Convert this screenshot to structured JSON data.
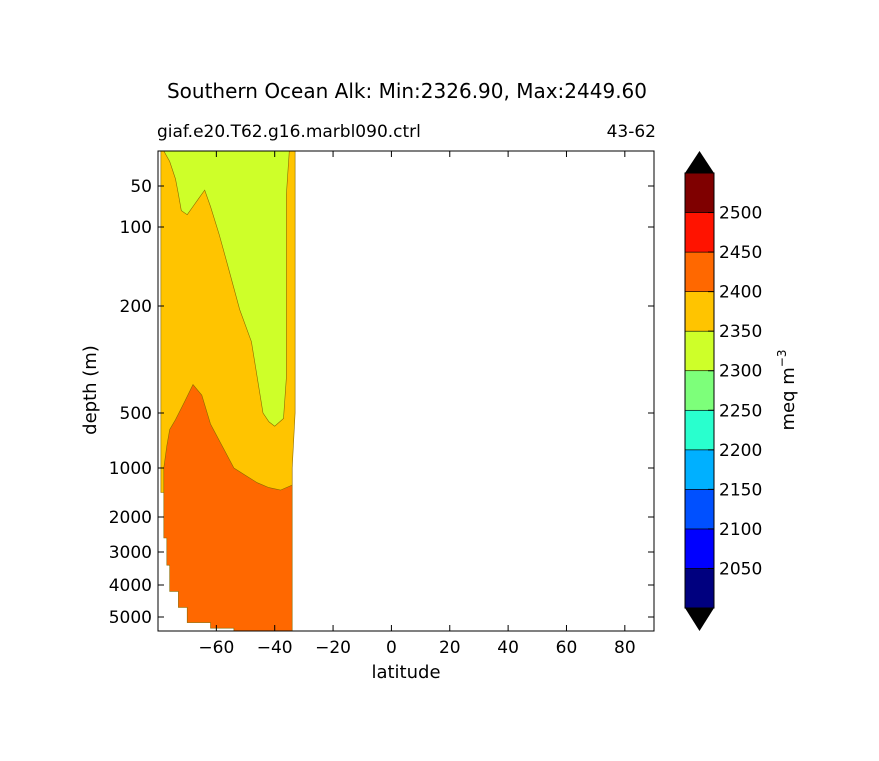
{
  "chart_data": {
    "type": "contour",
    "title": "Southern Ocean Alk: Min:2326.90, Max:2449.60",
    "subtitle_left": "giaf.e20.T62.g16.marbl090.ctrl",
    "subtitle_right": "43-62",
    "xlabel": "latitude",
    "ylabel": "depth (m)",
    "xlim": [
      -80,
      90
    ],
    "ylim": [
      5500,
      0
    ],
    "y_scale": "piecewise depth (shallow expanded)",
    "x_ticks": [
      -60,
      -40,
      -20,
      0,
      20,
      40,
      60,
      80
    ],
    "x_tick_labels": [
      "−60",
      "−40",
      "−20",
      "0",
      "20",
      "40",
      "60",
      "80"
    ],
    "y_ticks": [
      50,
      100,
      200,
      500,
      1000,
      2000,
      3000,
      4000,
      5000
    ],
    "y_tick_labels": [
      "50",
      "100",
      "200",
      "500",
      "1000",
      "2000",
      "3000",
      "4000",
      "5000"
    ],
    "grid": false,
    "colorbar": {
      "label": "meq m",
      "label_superscript": "−3",
      "levels": [
        2000,
        2050,
        2100,
        2150,
        2200,
        2250,
        2300,
        2350,
        2400,
        2450,
        2500,
        2550
      ],
      "tick_labels": [
        "2050",
        "2100",
        "2150",
        "2200",
        "2250",
        "2300",
        "2350",
        "2400",
        "2450",
        "2500"
      ],
      "colors": [
        "#00007f",
        "#0000ff",
        "#0050ff",
        "#00b0ff",
        "#29ffce",
        "#7dff7a",
        "#ceff29",
        "#ffc400",
        "#ff6800",
        "#ff1300",
        "#7f0000"
      ],
      "extend_min_color": "#000000",
      "extend_max_color": "#000000"
    },
    "regions": [
      {
        "level_range": [
          2350,
          2400
        ],
        "color": "#ffc400",
        "boundary": [
          [
            -79,
            0
          ],
          [
            -33,
            0
          ],
          [
            -33,
            500
          ],
          [
            -34,
            1000
          ],
          [
            -34,
            1500
          ],
          [
            -79,
            1500
          ]
        ]
      },
      {
        "level_range": [
          2300,
          2350
        ],
        "color": "#ceff29",
        "boundary": [
          [
            -78,
            0
          ],
          [
            -35,
            0
          ],
          [
            -36,
            60
          ],
          [
            -36,
            200
          ],
          [
            -36,
            400
          ],
          [
            -37,
            550
          ],
          [
            -40,
            620
          ],
          [
            -42,
            580
          ],
          [
            -44,
            500
          ],
          [
            -46,
            400
          ],
          [
            -48,
            300
          ],
          [
            -52,
            210
          ],
          [
            -56,
            150
          ],
          [
            -59,
            110
          ],
          [
            -62,
            75
          ],
          [
            -64,
            55
          ],
          [
            -66,
            65
          ],
          [
            -68,
            75
          ],
          [
            -70,
            85
          ],
          [
            -72,
            80
          ],
          [
            -73,
            60
          ],
          [
            -74,
            40
          ],
          [
            -76,
            15
          ]
        ]
      },
      {
        "level_range": [
          2400,
          2450
        ],
        "color": "#ff6800",
        "boundary": [
          [
            -78,
            1000
          ],
          [
            -77,
            800
          ],
          [
            -76,
            650
          ],
          [
            -74,
            560
          ],
          [
            -71,
            470
          ],
          [
            -68,
            420
          ],
          [
            -65,
            450
          ],
          [
            -62,
            600
          ],
          [
            -58,
            800
          ],
          [
            -54,
            1000
          ],
          [
            -50,
            1150
          ],
          [
            -46,
            1300
          ],
          [
            -42,
            1400
          ],
          [
            -38,
            1450
          ],
          [
            -34,
            1350
          ],
          [
            -34,
            5500
          ],
          [
            -54,
            5500
          ],
          [
            -54,
            5400
          ],
          [
            -62,
            5400
          ],
          [
            -62,
            5200
          ],
          [
            -70,
            5200
          ],
          [
            -70,
            4700
          ],
          [
            -73,
            4700
          ],
          [
            -73,
            4200
          ],
          [
            -76,
            4200
          ],
          [
            -76,
            3400
          ],
          [
            -77,
            3400
          ],
          [
            -77,
            2600
          ],
          [
            -78,
            2600
          ]
        ]
      }
    ]
  }
}
